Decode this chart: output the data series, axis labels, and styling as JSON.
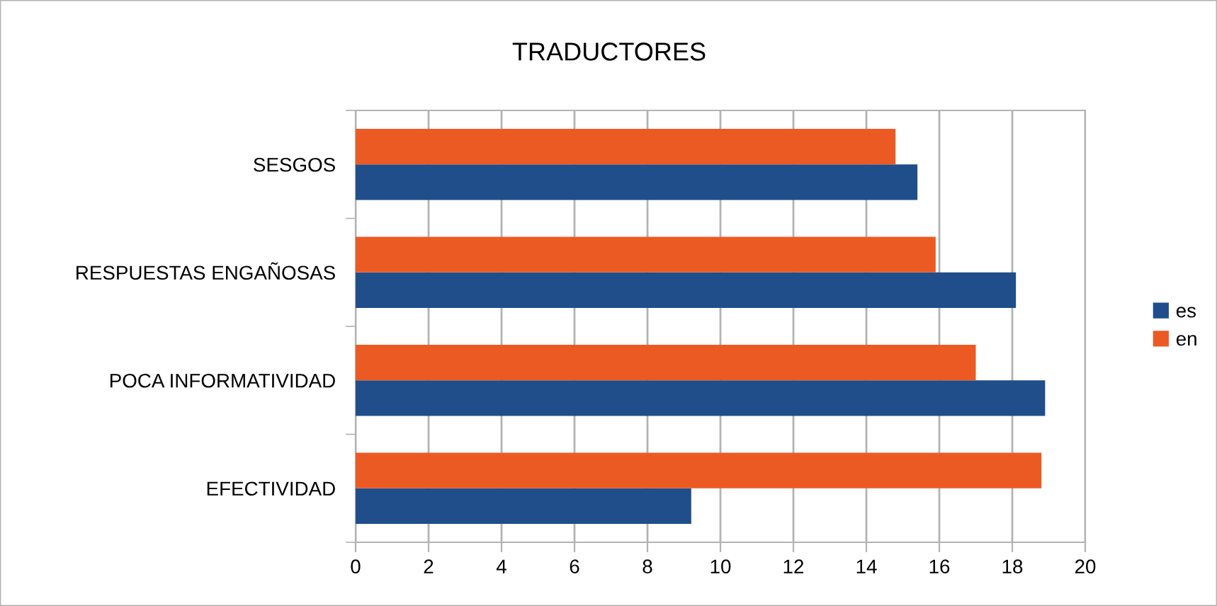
{
  "chart_data": {
    "type": "bar",
    "orientation": "horizontal",
    "title": "TRADUCTORES",
    "categories": [
      "SESGOS",
      "RESPUESTAS ENGAÑOSAS",
      "POCA INFORMATIVIDAD",
      "EFECTIVIDAD"
    ],
    "series": [
      {
        "name": "es",
        "color": "#1f4e8a",
        "values": [
          15.4,
          18.1,
          18.9,
          9.2
        ]
      },
      {
        "name": "en",
        "color": "#ec5a24",
        "values": [
          14.8,
          15.9,
          17.0,
          18.8
        ]
      }
    ],
    "xlim": [
      0,
      20
    ],
    "xticks": [
      0,
      2,
      4,
      6,
      8,
      10,
      12,
      14,
      16,
      18,
      20
    ],
    "grid": "x",
    "legend": "right"
  }
}
